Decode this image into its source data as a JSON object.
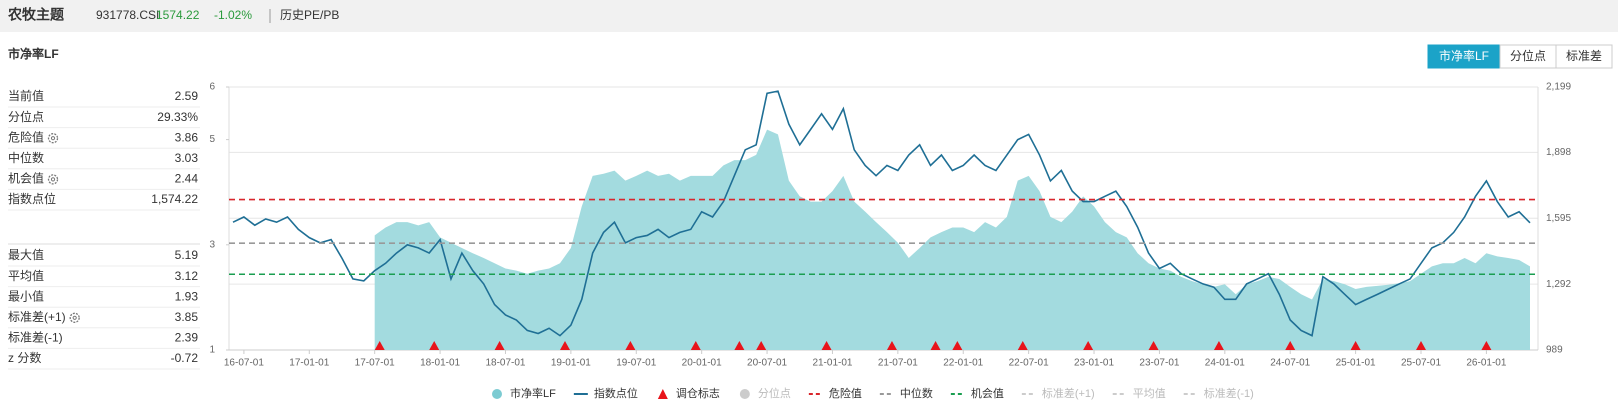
{
  "header": {
    "title": "农牧主题",
    "code": "931778.CSI",
    "price": "1574.22",
    "change": "-1.02%",
    "tab": "历史PE/PB"
  },
  "panel": {
    "title": "市净率LF",
    "tabs": [
      "市净率LF",
      "分位点",
      "标准差"
    ],
    "active_tab": 0
  },
  "stats": {
    "primary": [
      {
        "label": "当前值",
        "value": "2.59"
      },
      {
        "label": "分位点",
        "value": "29.33%"
      },
      {
        "label": "危险值",
        "value": "3.86",
        "gear": true
      },
      {
        "label": "中位数",
        "value": "3.03"
      },
      {
        "label": "机会值",
        "value": "2.44",
        "gear": true
      },
      {
        "label": "指数点位",
        "value": "1,574.22"
      }
    ],
    "secondary": [
      {
        "label": "最大值",
        "value": "5.19"
      },
      {
        "label": "平均值",
        "value": "3.12"
      },
      {
        "label": "最小值",
        "value": "1.93"
      },
      {
        "label": "标准差(+1)",
        "value": "3.85",
        "gear": true
      },
      {
        "label": "标准差(-1)",
        "value": "2.39"
      },
      {
        "label": "z 分数",
        "value": "-0.72"
      }
    ]
  },
  "chart_data": {
    "type": "combo",
    "x": [
      "16-06-01",
      "16-07-01",
      "16-08-01",
      "16-09-01",
      "16-10-01",
      "16-11-01",
      "16-12-01",
      "17-01-01",
      "17-02-01",
      "17-03-01",
      "17-04-01",
      "17-05-01",
      "17-06-01",
      "17-07-01",
      "17-08-01",
      "17-09-01",
      "17-10-01",
      "17-11-01",
      "17-12-01",
      "18-01-01",
      "18-02-01",
      "18-03-01",
      "18-04-01",
      "18-05-01",
      "18-06-01",
      "18-07-01",
      "18-08-01",
      "18-09-01",
      "18-10-01",
      "18-11-01",
      "18-12-01",
      "19-01-01",
      "19-02-01",
      "19-03-01",
      "19-04-01",
      "19-05-01",
      "19-06-01",
      "19-07-01",
      "19-08-01",
      "19-09-01",
      "19-10-01",
      "19-11-01",
      "19-12-01",
      "20-01-01",
      "20-02-01",
      "20-03-01",
      "20-04-01",
      "20-05-01",
      "20-06-01",
      "20-07-01",
      "20-08-01",
      "20-09-01",
      "20-10-01",
      "20-11-01",
      "20-12-01",
      "21-01-01",
      "21-02-01",
      "21-03-01",
      "21-04-01",
      "21-05-01",
      "21-06-01",
      "21-07-01",
      "21-08-01",
      "21-09-01",
      "21-10-01",
      "21-11-01",
      "21-12-01",
      "22-01-01",
      "22-02-01",
      "22-03-01",
      "22-04-01",
      "22-05-01",
      "22-06-01",
      "22-07-01",
      "22-08-01",
      "22-09-01",
      "22-10-01",
      "22-11-01",
      "22-12-01",
      "23-01-01",
      "23-02-01",
      "23-03-01",
      "23-04-01",
      "23-05-01",
      "23-06-01",
      "23-07-01",
      "23-08-01",
      "23-09-01",
      "23-10-01",
      "23-11-01",
      "23-12-01",
      "24-01-01",
      "24-02-01",
      "24-03-01",
      "24-04-01",
      "24-05-01",
      "24-06-01",
      "24-07-01",
      "24-08-01",
      "24-09-01",
      "24-10-01",
      "24-11-01",
      "24-12-01",
      "25-01-01",
      "25-02-01",
      "25-03-01",
      "25-04-01",
      "25-05-01",
      "25-06-01",
      "25-07-01",
      "25-08-01",
      "25-09-01",
      "25-10-01",
      "25-11-01",
      "25-12-01",
      "26-01-01",
      "26-02-01",
      "26-03-01",
      "26-04-01",
      "26-05-01"
    ],
    "xlim": [
      "16-06-01",
      "26-05-01"
    ],
    "xticks": [
      "16-07-01",
      "17-01-01",
      "17-07-01",
      "18-01-01",
      "18-07-01",
      "19-01-01",
      "19-07-01",
      "20-01-01",
      "20-07-01",
      "21-01-01",
      "21-07-01",
      "22-01-01",
      "22-07-01",
      "23-01-01",
      "23-07-01",
      "24-01-01",
      "24-07-01",
      "25-01-01",
      "25-07-01",
      "26-01-01"
    ],
    "ylim": [
      1,
      6
    ],
    "yticks": [
      1,
      3,
      5,
      6
    ],
    "y2lim": [
      989,
      2199
    ],
    "y2ticks": [
      989,
      {
        "value": 1292,
        "label": "1,292"
      },
      {
        "value": 1595,
        "label": "1,595"
      },
      {
        "value": 1898,
        "label": "1,898"
      },
      {
        "value": 2199,
        "label": "2,199"
      }
    ],
    "series": [
      {
        "name": "市净率LF",
        "kind": "area",
        "color": "#a3dbdf",
        "legend_color": "#7ccbd2",
        "values": [
          null,
          null,
          null,
          null,
          null,
          null,
          null,
          null,
          null,
          null,
          null,
          null,
          null,
          3.18,
          3.33,
          3.43,
          3.43,
          3.37,
          3.43,
          3.14,
          3.04,
          2.94,
          2.84,
          2.75,
          2.65,
          2.55,
          2.51,
          2.45,
          2.51,
          2.55,
          2.65,
          2.94,
          3.73,
          4.31,
          4.35,
          4.41,
          4.22,
          4.31,
          4.41,
          4.31,
          4.35,
          4.22,
          4.31,
          4.31,
          4.31,
          4.51,
          4.61,
          4.61,
          4.71,
          5.19,
          5.1,
          4.22,
          3.92,
          3.82,
          3.82,
          4.02,
          4.31,
          3.82,
          3.63,
          3.43,
          3.24,
          3.04,
          2.75,
          2.94,
          3.14,
          3.24,
          3.33,
          3.33,
          3.24,
          3.43,
          3.33,
          3.53,
          4.22,
          4.31,
          4.02,
          3.53,
          3.43,
          3.63,
          3.92,
          3.73,
          3.43,
          3.24,
          3.14,
          2.84,
          2.65,
          2.55,
          2.51,
          2.39,
          2.31,
          2.25,
          2.2,
          2.25,
          2.06,
          2.25,
          2.31,
          2.39,
          2.35,
          2.2,
          2.06,
          1.96,
          2.35,
          2.31,
          2.25,
          2.16,
          2.2,
          2.22,
          2.24,
          2.27,
          2.31,
          2.45,
          2.59,
          2.65,
          2.65,
          2.75,
          2.65,
          2.84,
          2.78,
          2.75,
          2.71,
          2.59
        ]
      },
      {
        "name": "指数点位",
        "kind": "line",
        "axis": "y2",
        "color": "#1f6f95",
        "values": [
          1577,
          1601,
          1563,
          1592,
          1577,
          1601,
          1544,
          1506,
          1482,
          1497,
          1411,
          1316,
          1307,
          1354,
          1388,
          1435,
          1473,
          1459,
          1435,
          1497,
          1316,
          1435,
          1354,
          1293,
          1198,
          1150,
          1127,
          1079,
          1065,
          1089,
          1055,
          1103,
          1222,
          1435,
          1530,
          1577,
          1482,
          1506,
          1516,
          1544,
          1506,
          1530,
          1544,
          1625,
          1601,
          1672,
          1791,
          1910,
          1933,
          2170,
          2180,
          2028,
          1933,
          2004,
          2076,
          2004,
          2099,
          1910,
          1838,
          1791,
          1838,
          1815,
          1886,
          1933,
          1838,
          1886,
          1815,
          1838,
          1886,
          1838,
          1815,
          1886,
          1957,
          1981,
          1886,
          1767,
          1815,
          1720,
          1672,
          1672,
          1696,
          1720,
          1649,
          1554,
          1435,
          1364,
          1388,
          1340,
          1316,
          1293,
          1278,
          1222,
          1222,
          1293,
          1316,
          1340,
          1245,
          1127,
          1079,
          1055,
          1326,
          1293,
          1245,
          1198,
          1222,
          1245,
          1269,
          1293,
          1316,
          1388,
          1459,
          1482,
          1530,
          1601,
          1696,
          1767,
          1672,
          1601,
          1625,
          1574.22
        ]
      },
      {
        "name": "调仓标志",
        "kind": "marker",
        "color": "#e8141b",
        "x": [
          "17-07-15",
          "17-12-15",
          "18-06-15",
          "18-12-15",
          "19-06-15",
          "19-12-15",
          "20-04-15",
          "20-06-15",
          "20-12-15",
          "21-06-15",
          "21-10-15",
          "21-12-15",
          "22-06-15",
          "22-12-15",
          "23-06-15",
          "23-12-15",
          "24-07-01",
          "25-01-01",
          "25-07-01",
          "26-01-01"
        ]
      },
      {
        "name": "分位点",
        "kind": "circle",
        "hidden": true,
        "color": "#cccccc"
      },
      {
        "name": "危险值",
        "kind": "hline",
        "value": 3.86,
        "color": "#d9262c"
      },
      {
        "name": "中位数",
        "kind": "hline",
        "value": 3.03,
        "color": "#999999"
      },
      {
        "name": "机会值",
        "kind": "hline",
        "value": 2.44,
        "color": "#1a9e50"
      },
      {
        "name": "标准差(+1)",
        "kind": "hline",
        "hidden": true,
        "color": "#cccccc"
      },
      {
        "name": "平均值",
        "kind": "hline",
        "hidden": true,
        "color": "#cccccc"
      },
      {
        "name": "标准差(-1)",
        "kind": "hline",
        "hidden": true,
        "color": "#cccccc"
      }
    ]
  }
}
